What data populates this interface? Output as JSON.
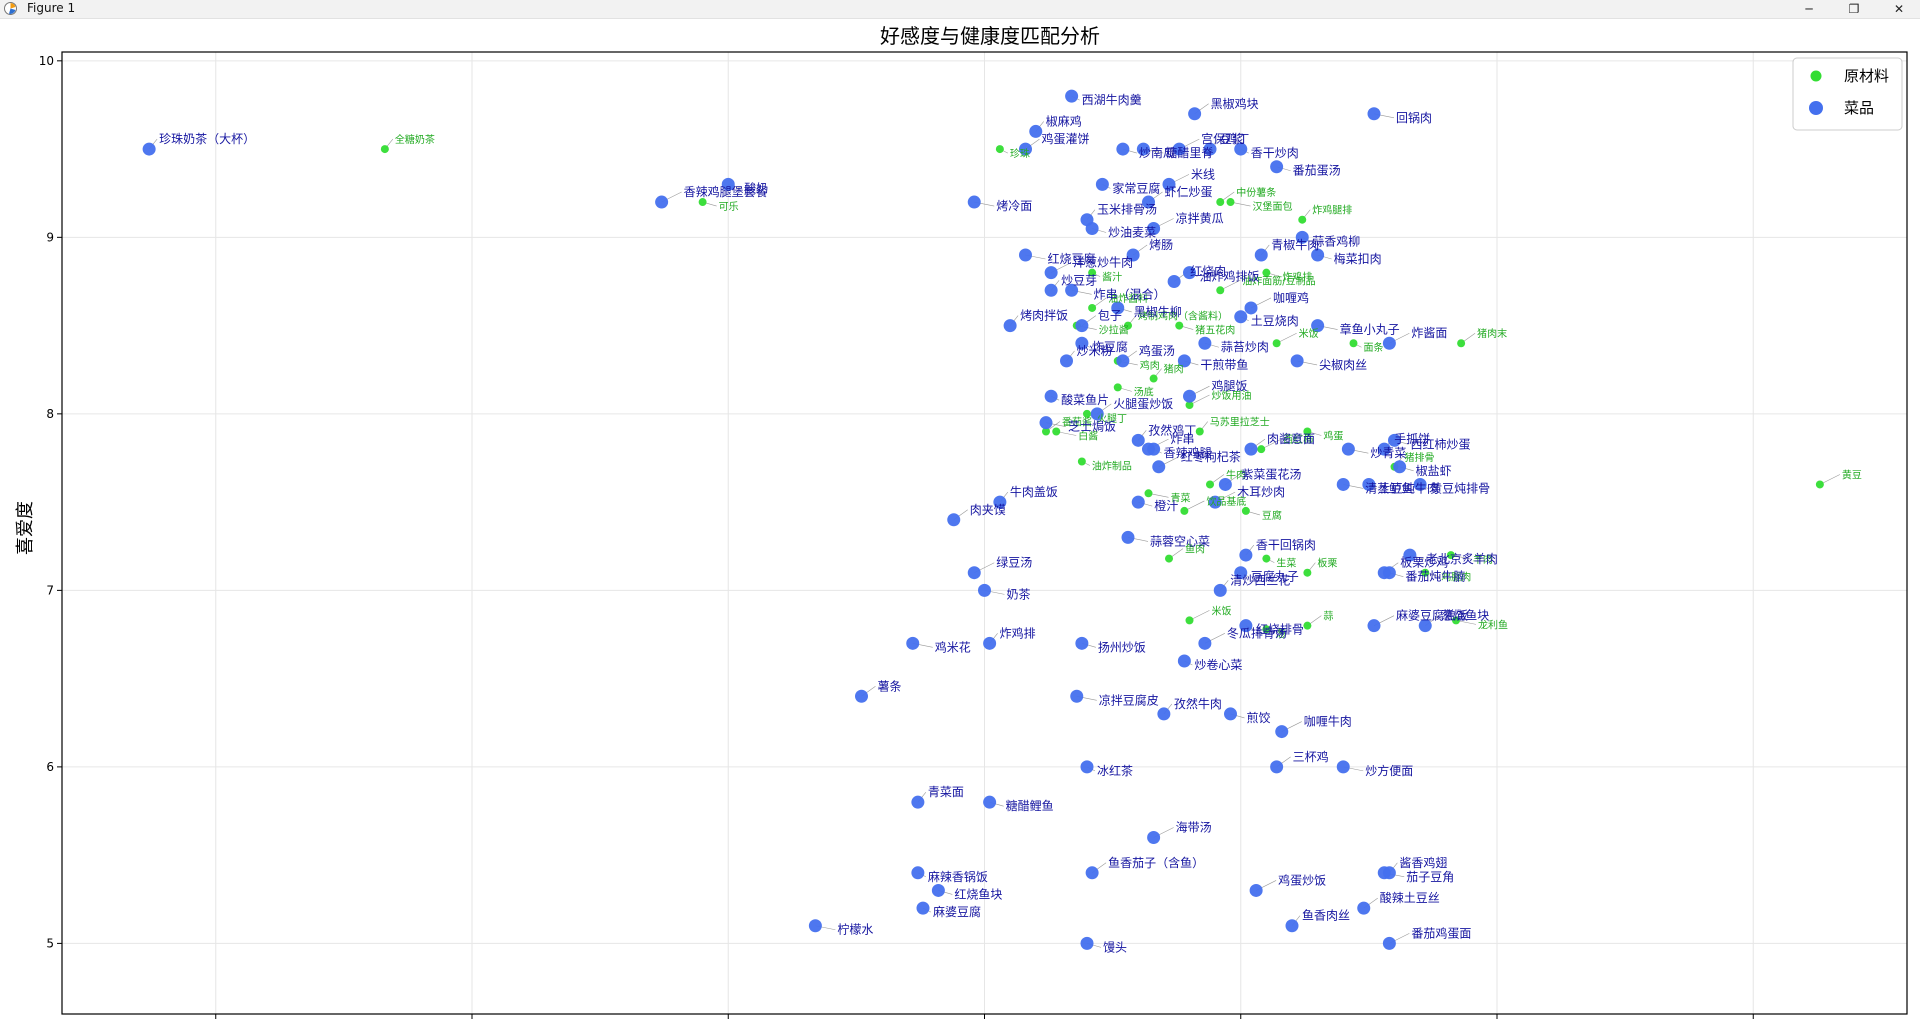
{
  "window": {
    "title": "Figure 1",
    "icons": [
      "matplotlib-icon",
      "minimize-icon",
      "maximize-icon",
      "close-icon"
    ],
    "minimize_glyph": "─",
    "maximize_glyph": "❐",
    "close_glyph": "✕"
  },
  "chart_data": {
    "type": "scatter",
    "title": "好感度与健康度匹配分析",
    "xlabel": "",
    "ylabel": "喜爱度",
    "xlim": [
      -230,
      130
    ],
    "ylim": [
      4.6,
      10.05
    ],
    "xticks": [
      -200,
      -150,
      -100,
      -50,
      0,
      50,
      100
    ],
    "yticks": [
      5,
      6,
      7,
      8,
      9,
      10
    ],
    "grid": true,
    "legend_position": "top-right",
    "colors": {
      "ingredient": "#33dd33",
      "dish": "#4470ee",
      "ingredient_label": "#22aa22",
      "dish_label": "#1515a0"
    },
    "series": [
      {
        "name": "原材料",
        "points": [
          {
            "label": "全糖奶茶",
            "x": -167,
            "y": 9.5
          },
          {
            "label": "可乐",
            "x": -105,
            "y": 9.2
          },
          {
            "label": "黄豆",
            "x": 113,
            "y": 7.6
          },
          {
            "label": "珍珠",
            "x": -47,
            "y": 9.5
          },
          {
            "label": "中份薯条",
            "x": -4,
            "y": 9.2
          },
          {
            "label": "汉堡面包",
            "x": -2,
            "y": 9.2
          },
          {
            "label": "炸鸡腿排",
            "x": 12,
            "y": 9.1
          },
          {
            "label": "炸鸡排",
            "x": 5,
            "y": 8.8
          },
          {
            "label": "油炸面筋/豆制品",
            "x": -4,
            "y": 8.7
          },
          {
            "label": "酱汁",
            "x": -29,
            "y": 8.8
          },
          {
            "label": "油炸酱料",
            "x": -29,
            "y": 8.6
          },
          {
            "label": "沙拉酱",
            "x": -32,
            "y": 8.5
          },
          {
            "label": "烤制鸡肉（含酱料）",
            "x": -22,
            "y": 8.5
          },
          {
            "label": "猪五花肉",
            "x": -12,
            "y": 8.5
          },
          {
            "label": "米饭",
            "x": 7,
            "y": 8.4
          },
          {
            "label": "面条",
            "x": 22,
            "y": 8.4
          },
          {
            "label": "猪肉末",
            "x": 43,
            "y": 8.4
          },
          {
            "label": "鸡肉",
            "x": -24,
            "y": 8.3
          },
          {
            "label": "猪肉",
            "x": -17,
            "y": 8.2
          },
          {
            "label": "汤底",
            "x": -24,
            "y": 8.15
          },
          {
            "label": "炒饭用油",
            "x": -10,
            "y": 8.05
          },
          {
            "label": "火腿丁",
            "x": -30,
            "y": 8.0
          },
          {
            "label": "番茄酱",
            "x": -38,
            "y": 7.9
          },
          {
            "label": "白酱",
            "x": -36,
            "y": 7.9
          },
          {
            "label": "马苏里拉芝士",
            "x": -8,
            "y": 7.9
          },
          {
            "label": "鸡蛋",
            "x": 13,
            "y": 7.9
          },
          {
            "label": "西红柿",
            "x": 4,
            "y": 7.8
          },
          {
            "label": "油炸制品",
            "x": -31,
            "y": 7.73
          },
          {
            "label": "牛肉",
            "x": -6,
            "y": 7.6
          },
          {
            "label": "青菜",
            "x": -18,
            "y": 7.55
          },
          {
            "label": "猪排骨",
            "x": 30,
            "y": 7.7
          },
          {
            "label": "豆腐",
            "x": 1,
            "y": 7.45
          },
          {
            "label": "饮品基底",
            "x": -11,
            "y": 7.45
          },
          {
            "label": "生菜",
            "x": 5,
            "y": 7.18
          },
          {
            "label": "鱼肉",
            "x": -14,
            "y": 7.18
          },
          {
            "label": "羊肉",
            "x": 41,
            "y": 7.2
          },
          {
            "label": "板栗",
            "x": 13,
            "y": 7.1
          },
          {
            "label": "鸡腿肉",
            "x": 36,
            "y": 7.1
          },
          {
            "label": "米饭",
            "x": -10,
            "y": 6.83
          },
          {
            "label": "葱",
            "x": 5,
            "y": 6.78
          },
          {
            "label": "蒜",
            "x": 13,
            "y": 6.8
          },
          {
            "label": "龙利鱼",
            "x": 42,
            "y": 6.83
          }
        ]
      },
      {
        "name": "菜品",
        "points": [
          {
            "label": "珍珠奶茶（大杯）",
            "x": -213,
            "y": 9.5
          },
          {
            "label": "酸奶",
            "x": -100,
            "y": 9.3
          },
          {
            "label": "香辣鸡腿堡套餐",
            "x": -113,
            "y": 9.2
          },
          {
            "label": "西湖牛肉羹",
            "x": -33,
            "y": 9.8
          },
          {
            "label": "黑椒鸡块",
            "x": -9,
            "y": 9.7
          },
          {
            "label": "回锅肉",
            "x": 26,
            "y": 9.7
          },
          {
            "label": "椒麻鸡",
            "x": -40,
            "y": 9.6
          },
          {
            "label": "炒南瓜",
            "x": -23,
            "y": 9.5
          },
          {
            "label": "宫保鸡丁",
            "x": -12,
            "y": 9.5
          },
          {
            "label": "香干炒肉",
            "x": 0,
            "y": 9.5
          },
          {
            "label": "鸡蛋灌饼",
            "x": -42,
            "y": 9.5
          },
          {
            "label": "糖醋里脊",
            "x": -19,
            "y": 9.5
          },
          {
            "label": "豆浆",
            "x": -6,
            "y": 9.5
          },
          {
            "label": "番茄蛋汤",
            "x": 7,
            "y": 9.4
          },
          {
            "label": "米线",
            "x": -14,
            "y": 9.3
          },
          {
            "label": "家常豆腐",
            "x": -27,
            "y": 9.3
          },
          {
            "label": "虾仁炒蛋",
            "x": -18,
            "y": 9.2
          },
          {
            "label": "烤冷面",
            "x": -52,
            "y": 9.2
          },
          {
            "label": "玉米排骨汤",
            "x": -30,
            "y": 9.1
          },
          {
            "label": "炒油麦菜",
            "x": -29,
            "y": 9.05
          },
          {
            "label": "凉拌黄瓜",
            "x": -17,
            "y": 9.05
          },
          {
            "label": "蒜香鸡柳",
            "x": 12,
            "y": 9.0
          },
          {
            "label": "烤肠",
            "x": -21,
            "y": 8.9
          },
          {
            "label": "红烧豆腐",
            "x": -42,
            "y": 8.9
          },
          {
            "label": "青椒牛肉",
            "x": 4,
            "y": 8.9
          },
          {
            "label": "梅菜扣肉",
            "x": 15,
            "y": 8.9
          },
          {
            "label": "洋葱炒牛肉",
            "x": -37,
            "y": 8.8
          },
          {
            "label": "油炸鸡排饭",
            "x": -10,
            "y": 8.8
          },
          {
            "label": "红烧肉",
            "x": -13,
            "y": 8.75
          },
          {
            "label": "炸串（混合）",
            "x": -33,
            "y": 8.7
          },
          {
            "label": "炒豆芽",
            "x": -37,
            "y": 8.7
          },
          {
            "label": "黑椒牛柳",
            "x": -24,
            "y": 8.6
          },
          {
            "label": "咖喱鸡",
            "x": 2,
            "y": 8.6
          },
          {
            "label": "土豆烧肉",
            "x": 0,
            "y": 8.55
          },
          {
            "label": "包子",
            "x": -31,
            "y": 8.5
          },
          {
            "label": "章鱼小丸子",
            "x": 15,
            "y": 8.5
          },
          {
            "label": "烤肉拌饭",
            "x": -45,
            "y": 8.5
          },
          {
            "label": "蒜苔炒肉",
            "x": -7,
            "y": 8.4
          },
          {
            "label": "炸酱面",
            "x": 29,
            "y": 8.4
          },
          {
            "label": "炸豆腐",
            "x": -31,
            "y": 8.4
          },
          {
            "label": "鸡蛋汤",
            "x": -23,
            "y": 8.3
          },
          {
            "label": "尖椒肉丝",
            "x": 11,
            "y": 8.3
          },
          {
            "label": "炒米粉",
            "x": -34,
            "y": 8.3
          },
          {
            "label": "干煎带鱼",
            "x": -11,
            "y": 8.3
          },
          {
            "label": "鸡腿饭",
            "x": -10,
            "y": 8.1
          },
          {
            "label": "酸菜鱼片",
            "x": -37,
            "y": 8.1
          },
          {
            "label": "火腿蛋炒饭",
            "x": -28,
            "y": 8.0
          },
          {
            "label": "芝士焗饭",
            "x": -38,
            "y": 7.95
          },
          {
            "label": "孜然鸡丁",
            "x": -20,
            "y": 7.85
          },
          {
            "label": "西红柿炒蛋",
            "x": 30,
            "y": 7.85
          },
          {
            "label": "炸串",
            "x": -18,
            "y": 7.8
          },
          {
            "label": "香辣鸡腿",
            "x": -17,
            "y": 7.8
          },
          {
            "label": "肉酱意面",
            "x": 2,
            "y": 7.8
          },
          {
            "label": "炒青菜",
            "x": 21,
            "y": 7.8
          },
          {
            "label": "手抓饼",
            "x": 28,
            "y": 7.8
          },
          {
            "label": "椒盐虾",
            "x": 31,
            "y": 7.7
          },
          {
            "label": "红枣枸杞茶",
            "x": -16,
            "y": 7.7
          },
          {
            "label": "黄豆炖排骨",
            "x": 35,
            "y": 7.6
          },
          {
            "label": "紫菜蛋花汤",
            "x": -3,
            "y": 7.6
          },
          {
            "label": "清蒸鲈鱼",
            "x": 20,
            "y": 7.6
          },
          {
            "label": "牛肉盖饭",
            "x": -47,
            "y": 7.5
          },
          {
            "label": "橙汁",
            "x": -20,
            "y": 7.5
          },
          {
            "label": "木耳炒肉",
            "x": -5,
            "y": 7.5
          },
          {
            "label": "土豆炖牛肉",
            "x": 25,
            "y": 7.6
          },
          {
            "label": "肉夹馍",
            "x": -56,
            "y": 7.4
          },
          {
            "label": "蒜蓉空心菜",
            "x": -22,
            "y": 7.3
          },
          {
            "label": "香干回锅肉",
            "x": 1,
            "y": 7.2
          },
          {
            "label": "老北京炙羊肉",
            "x": 33,
            "y": 7.2
          },
          {
            "label": "绿豆汤",
            "x": -52,
            "y": 7.1
          },
          {
            "label": "豆腐丸子",
            "x": 0,
            "y": 7.1
          },
          {
            "label": "板栗炒鸡",
            "x": 28,
            "y": 7.1
          },
          {
            "label": "奶茶",
            "x": -50,
            "y": 7.0
          },
          {
            "label": "清炒西兰花",
            "x": -4,
            "y": 7.0
          },
          {
            "label": "番茄炖牛腩",
            "x": 29,
            "y": 7.1
          },
          {
            "label": "麻婆豆腐盖饭",
            "x": 26,
            "y": 6.8
          },
          {
            "label": "红烧排骨",
            "x": 1,
            "y": 6.8
          },
          {
            "label": "葱烧鱼块",
            "x": 36,
            "y": 6.8
          },
          {
            "label": "鸡米花",
            "x": -64,
            "y": 6.7
          },
          {
            "label": "炸鸡排",
            "x": -49,
            "y": 6.7
          },
          {
            "label": "扬州炒饭",
            "x": -31,
            "y": 6.7
          },
          {
            "label": "冬瓜排骨汤",
            "x": -7,
            "y": 6.7
          },
          {
            "label": "炒卷心菜",
            "x": -11,
            "y": 6.6
          },
          {
            "label": "薯条",
            "x": -74,
            "y": 6.4
          },
          {
            "label": "凉拌豆腐皮",
            "x": -32,
            "y": 6.4
          },
          {
            "label": "孜然牛肉",
            "x": -15,
            "y": 6.3
          },
          {
            "label": "煎饺",
            "x": -2,
            "y": 6.3
          },
          {
            "label": "咖喱牛肉",
            "x": 8,
            "y": 6.2
          },
          {
            "label": "冰红茶",
            "x": -30,
            "y": 6.0
          },
          {
            "label": "三杯鸡",
            "x": 7,
            "y": 6.0
          },
          {
            "label": "炒方便面",
            "x": 20,
            "y": 6.0
          },
          {
            "label": "青菜面",
            "x": -63,
            "y": 5.8
          },
          {
            "label": "糖醋鲤鱼",
            "x": -49,
            "y": 5.8
          },
          {
            "label": "海带汤",
            "x": -17,
            "y": 5.6
          },
          {
            "label": "麻辣香锅饭",
            "x": -63,
            "y": 5.4
          },
          {
            "label": "鱼香茄子（含鱼）",
            "x": -29,
            "y": 5.4
          },
          {
            "label": "茄子豆角",
            "x": 28,
            "y": 5.4
          },
          {
            "label": "酱香鸡翅",
            "x": 29,
            "y": 5.4
          },
          {
            "label": "红烧鱼块",
            "x": -59,
            "y": 5.3
          },
          {
            "label": "鸡蛋炒饭",
            "x": 3,
            "y": 5.3
          },
          {
            "label": "麻婆豆腐",
            "x": -62,
            "y": 5.2
          },
          {
            "label": "酸辣土豆丝",
            "x": 24,
            "y": 5.2
          },
          {
            "label": "柠檬水",
            "x": -83,
            "y": 5.1
          },
          {
            "label": "鱼香肉丝",
            "x": 10,
            "y": 5.1
          },
          {
            "label": "馒头",
            "x": -30,
            "y": 5.0
          },
          {
            "label": "番茄鸡蛋面",
            "x": 29,
            "y": 5.0
          }
        ]
      }
    ]
  }
}
